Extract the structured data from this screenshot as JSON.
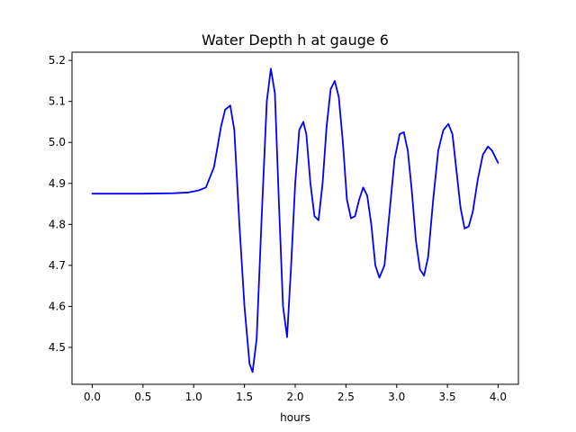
{
  "chart_data": {
    "type": "line",
    "title": "Water Depth h at gauge 6",
    "xlabel": "hours",
    "ylabel": "",
    "xlim": [
      -0.2,
      4.2
    ],
    "ylim": [
      4.41,
      5.22
    ],
    "xticks": [
      "0.0",
      "0.5",
      "1.0",
      "1.5",
      "2.0",
      "2.5",
      "3.0",
      "3.5",
      "4.0"
    ],
    "yticks": [
      "4.5",
      "4.6",
      "4.7",
      "4.8",
      "4.9",
      "5.0",
      "5.1",
      "5.2"
    ],
    "grid": false,
    "series": [
      {
        "color": "#0000ff",
        "x": [
          0.0,
          0.5,
          0.8,
          0.95,
          1.05,
          1.12,
          1.2,
          1.27,
          1.31,
          1.36,
          1.4,
          1.45,
          1.5,
          1.55,
          1.58,
          1.62,
          1.67,
          1.72,
          1.76,
          1.8,
          1.84,
          1.88,
          1.92,
          1.96,
          2.0,
          2.04,
          2.08,
          2.11,
          2.15,
          2.19,
          2.23,
          2.27,
          2.31,
          2.35,
          2.39,
          2.43,
          2.47,
          2.51,
          2.55,
          2.59,
          2.63,
          2.67,
          2.71,
          2.75,
          2.79,
          2.83,
          2.88,
          2.93,
          2.98,
          3.03,
          3.07,
          3.11,
          3.15,
          3.19,
          3.23,
          3.27,
          3.31,
          3.36,
          3.41,
          3.46,
          3.51,
          3.55,
          3.59,
          3.63,
          3.67,
          3.71,
          3.75,
          3.8,
          3.85,
          3.9,
          3.94,
          3.98,
          4.0
        ],
        "y": [
          4.875,
          4.875,
          4.876,
          4.878,
          4.883,
          4.89,
          4.94,
          5.04,
          5.08,
          5.09,
          5.03,
          4.8,
          4.6,
          4.46,
          4.44,
          4.52,
          4.82,
          5.1,
          5.18,
          5.12,
          4.85,
          4.6,
          4.525,
          4.7,
          4.9,
          5.03,
          5.05,
          5.02,
          4.9,
          4.82,
          4.81,
          4.9,
          5.04,
          5.13,
          5.15,
          5.11,
          5.0,
          4.86,
          4.815,
          4.82,
          4.86,
          4.89,
          4.87,
          4.8,
          4.7,
          4.67,
          4.7,
          4.83,
          4.96,
          5.02,
          5.025,
          4.98,
          4.88,
          4.76,
          4.69,
          4.675,
          4.72,
          4.86,
          4.98,
          5.03,
          5.045,
          5.02,
          4.93,
          4.84,
          4.79,
          4.795,
          4.83,
          4.91,
          4.97,
          4.99,
          4.98,
          4.96,
          4.95
        ]
      }
    ]
  }
}
